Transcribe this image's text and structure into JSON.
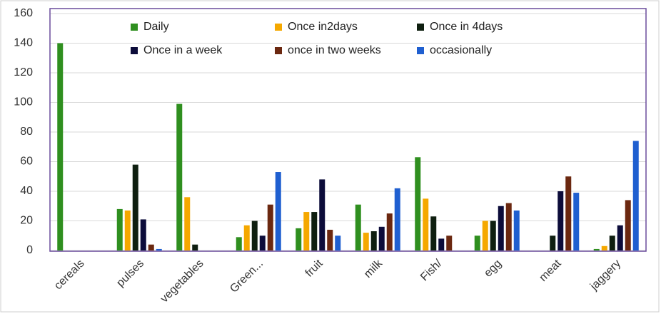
{
  "chart_data": {
    "type": "bar",
    "categories": [
      "cereals",
      "pulses",
      "vegetables",
      "Green...",
      "fruit",
      "milk",
      "Fish/",
      "egg",
      "meat",
      "jaggery"
    ],
    "series": [
      {
        "name": "Daily",
        "color": "#2f8f1f",
        "values": [
          140,
          28,
          99,
          9,
          15,
          31,
          63,
          10,
          0,
          1
        ]
      },
      {
        "name": "Once in2days",
        "color": "#f5a800",
        "values": [
          0,
          27,
          36,
          17,
          26,
          12,
          35,
          20,
          0,
          3
        ]
      },
      {
        "name": "Once in 4days",
        "color": "#0f1f10",
        "values": [
          0,
          58,
          4,
          20,
          26,
          13,
          23,
          20,
          10,
          10
        ]
      },
      {
        "name": "Once in a week",
        "color": "#0c0c3a",
        "values": [
          0,
          21,
          0,
          10,
          48,
          16,
          8,
          30,
          40,
          17
        ]
      },
      {
        "name": "once in two weeks",
        "color": "#6b2810",
        "values": [
          0,
          4,
          0,
          31,
          14,
          25,
          10,
          32,
          50,
          34
        ]
      },
      {
        "name": "occasionally",
        "color": "#1f5fd0",
        "values": [
          0,
          1,
          0,
          53,
          10,
          42,
          0,
          27,
          39,
          74
        ]
      }
    ],
    "ylim": [
      0,
      160
    ],
    "yticks": [
      0,
      20,
      40,
      60,
      80,
      100,
      120,
      140,
      160
    ],
    "grid": true
  }
}
